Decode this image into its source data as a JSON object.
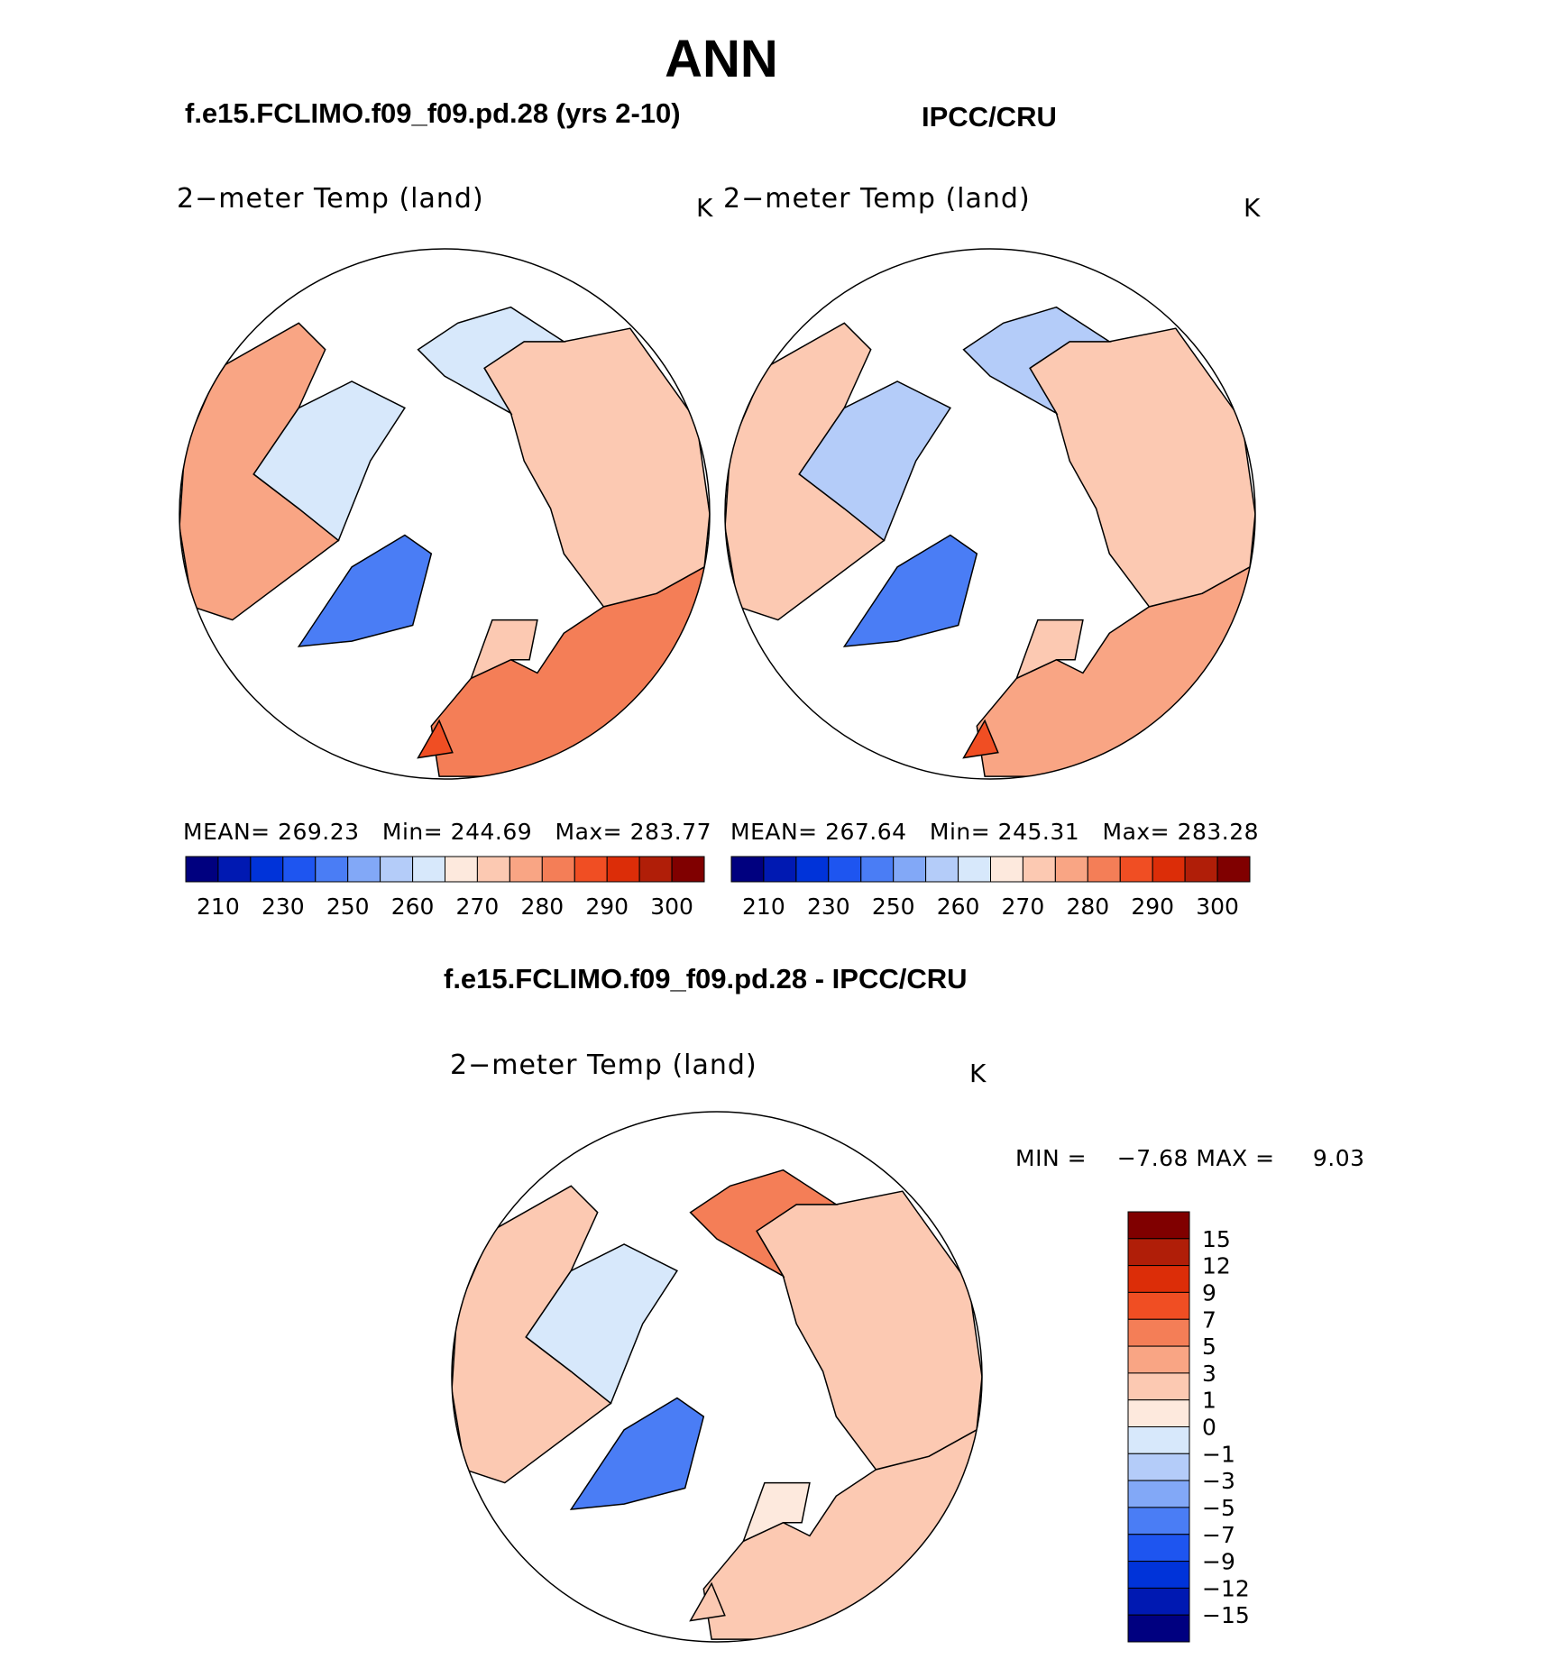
{
  "season": "ANN",
  "colors": {
    "abs_scale": [
      "#00007f",
      "#0019b2",
      "#0033d9",
      "#1e55f0",
      "#4a7df5",
      "#82a8f7",
      "#b4ccf9",
      "#d7e8fb",
      "#fde9dd",
      "#fcc9b2",
      "#f9a584",
      "#f47e57",
      "#f04e23",
      "#dc2d08",
      "#b01e08",
      "#800000"
    ],
    "diff_scale": [
      "#000080",
      "#0019b2",
      "#0033d9",
      "#1e55f0",
      "#4a7df5",
      "#82a8f7",
      "#b4ccf9",
      "#d7e8fb",
      "#fde9dd",
      "#fcc9b2",
      "#f9a584",
      "#f47e57",
      "#f04e23",
      "#dc2d08",
      "#b01e08",
      "#800000"
    ],
    "outline": "#000000",
    "land_white": "#ffffff"
  },
  "panels": [
    {
      "title": "f.e15.FCLIMO.f09_f09.pd.28 (yrs 2-10)",
      "variable": "2−meter Temp (land)",
      "units": "K",
      "stats": {
        "mean_label": "MEAN=",
        "mean": "269.23",
        "min_label": "Min=",
        "min": "244.69",
        "max_label": "Max=",
        "max": "283.77"
      }
    },
    {
      "title": "IPCC/CRU",
      "variable": "2−meter Temp (land)",
      "units": "K",
      "stats": {
        "mean_label": "MEAN=",
        "mean": "267.64",
        "min_label": "Min=",
        "min": "245.31",
        "max_label": "Max=",
        "max": "283.28"
      }
    },
    {
      "title": "f.e15.FCLIMO.f09_f09.pd.28 - IPCC/CRU",
      "variable": "2−meter Temp (land)",
      "units": "K",
      "stats": {
        "min_label": "MIN =",
        "min": "−7.68",
        "max_label": "MAX =",
        "max": "9.03"
      }
    }
  ],
  "chart_data": [
    {
      "type": "heatmap",
      "projection": "north polar stereographic",
      "title": "f.e15.FCLIMO.f09_f09.pd.28 (yrs 2-10)",
      "variable": "2-meter Temp (land)",
      "units": "K",
      "mean": 269.23,
      "min": 244.69,
      "max": 283.77,
      "colorbar_ticks": [
        "210",
        "230",
        "250",
        "260",
        "270",
        "280",
        "290",
        "300"
      ]
    },
    {
      "type": "heatmap",
      "projection": "north polar stereographic",
      "title": "IPCC/CRU",
      "variable": "2-meter Temp (land)",
      "units": "K",
      "mean": 267.64,
      "min": 245.31,
      "max": 283.28,
      "colorbar_ticks": [
        "210",
        "230",
        "250",
        "260",
        "270",
        "280",
        "290",
        "300"
      ]
    },
    {
      "type": "heatmap",
      "projection": "north polar stereographic",
      "title": "f.e15.FCLIMO.f09_f09.pd.28 - IPCC/CRU",
      "variable": "2-meter Temp (land)",
      "units": "K",
      "min": -7.68,
      "max": 9.03,
      "colorbar_ticks": [
        "15",
        "12",
        "9",
        "7",
        "5",
        "3",
        "1",
        "0",
        "−1",
        "−3",
        "−5",
        "−7",
        "−9",
        "−12",
        "−15"
      ]
    }
  ]
}
